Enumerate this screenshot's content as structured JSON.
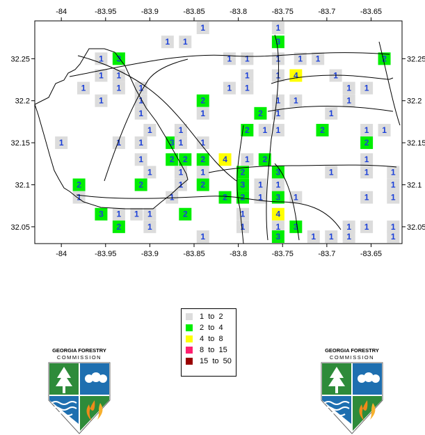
{
  "map": {
    "x_ticks": [
      "-84",
      "-83.95",
      "-83.9",
      "-83.85",
      "-83.8",
      "-83.75",
      "-83.7",
      "-83.65"
    ],
    "y_ticks": [
      "32.25",
      "32.2",
      "32.15",
      "32.1",
      "32.05"
    ],
    "lon_range": [
      -84.03,
      -83.615
    ],
    "lat_range": [
      32.03,
      32.295
    ],
    "cells": [
      {
        "lon": -83.84,
        "lat": 32.29,
        "label": "1",
        "class": "1to2"
      },
      {
        "lon": -83.755,
        "lat": 32.29,
        "label": "1",
        "class": "1to2"
      },
      {
        "lon": -83.88,
        "lat": 32.27,
        "label": "1",
        "class": "1to2"
      },
      {
        "lon": -83.86,
        "lat": 32.27,
        "label": "1",
        "class": "1to2"
      },
      {
        "lon": -83.755,
        "lat": 32.27,
        "label": "3",
        "class": "2to4"
      },
      {
        "lon": -83.955,
        "lat": 32.25,
        "label": "1",
        "class": "1to2"
      },
      {
        "lon": -83.935,
        "lat": 32.25,
        "label": "3",
        "class": "2to4"
      },
      {
        "lon": -83.81,
        "lat": 32.25,
        "label": "1",
        "class": "1to2"
      },
      {
        "lon": -83.79,
        "lat": 32.25,
        "label": "1",
        "class": "1to2"
      },
      {
        "lon": -83.755,
        "lat": 32.25,
        "label": "1",
        "class": "1to2"
      },
      {
        "lon": -83.73,
        "lat": 32.25,
        "label": "1",
        "class": "1to2"
      },
      {
        "lon": -83.71,
        "lat": 32.25,
        "label": "1",
        "class": "1to2"
      },
      {
        "lon": -83.635,
        "lat": 32.25,
        "label": "2",
        "class": "2to4"
      },
      {
        "lon": -83.955,
        "lat": 32.23,
        "label": "1",
        "class": "1to2"
      },
      {
        "lon": -83.935,
        "lat": 32.23,
        "label": "1",
        "class": "1to2"
      },
      {
        "lon": -83.79,
        "lat": 32.23,
        "label": "1",
        "class": "1to2"
      },
      {
        "lon": -83.755,
        "lat": 32.23,
        "label": "1",
        "class": "1to2"
      },
      {
        "lon": -83.735,
        "lat": 32.23,
        "label": "4",
        "class": "4to8"
      },
      {
        "lon": -83.69,
        "lat": 32.23,
        "label": "1",
        "class": "1to2"
      },
      {
        "lon": -83.975,
        "lat": 32.215,
        "label": "1",
        "class": "1to2"
      },
      {
        "lon": -83.935,
        "lat": 32.215,
        "label": "1",
        "class": "1to2"
      },
      {
        "lon": -83.91,
        "lat": 32.215,
        "label": "1",
        "class": "1to2"
      },
      {
        "lon": -83.81,
        "lat": 32.215,
        "label": "1",
        "class": "1to2"
      },
      {
        "lon": -83.79,
        "lat": 32.215,
        "label": "1",
        "class": "1to2"
      },
      {
        "lon": -83.675,
        "lat": 32.215,
        "label": "1",
        "class": "1to2"
      },
      {
        "lon": -83.655,
        "lat": 32.215,
        "label": "1",
        "class": "1to2"
      },
      {
        "lon": -83.955,
        "lat": 32.2,
        "label": "1",
        "class": "1to2"
      },
      {
        "lon": -83.91,
        "lat": 32.2,
        "label": "1",
        "class": "1to2"
      },
      {
        "lon": -83.84,
        "lat": 32.2,
        "label": "2",
        "class": "2to4"
      },
      {
        "lon": -83.755,
        "lat": 32.2,
        "label": "1",
        "class": "1to2"
      },
      {
        "lon": -83.735,
        "lat": 32.2,
        "label": "1",
        "class": "1to2"
      },
      {
        "lon": -83.675,
        "lat": 32.2,
        "label": "1",
        "class": "1to2"
      },
      {
        "lon": -83.91,
        "lat": 32.185,
        "label": "1",
        "class": "1to2"
      },
      {
        "lon": -83.84,
        "lat": 32.185,
        "label": "1",
        "class": "1to2"
      },
      {
        "lon": -83.775,
        "lat": 32.185,
        "label": "2",
        "class": "2to4"
      },
      {
        "lon": -83.755,
        "lat": 32.185,
        "label": "1",
        "class": "1to2"
      },
      {
        "lon": -83.695,
        "lat": 32.185,
        "label": "1",
        "class": "1to2"
      },
      {
        "lon": -83.9,
        "lat": 32.165,
        "label": "1",
        "class": "1to2"
      },
      {
        "lon": -83.865,
        "lat": 32.165,
        "label": "1",
        "class": "1to2"
      },
      {
        "lon": -83.79,
        "lat": 32.165,
        "label": "2",
        "class": "2to4"
      },
      {
        "lon": -83.77,
        "lat": 32.165,
        "label": "1",
        "class": "1to2"
      },
      {
        "lon": -83.755,
        "lat": 32.165,
        "label": "1",
        "class": "1to2"
      },
      {
        "lon": -83.705,
        "lat": 32.165,
        "label": "2",
        "class": "2to4"
      },
      {
        "lon": -83.655,
        "lat": 32.165,
        "label": "1",
        "class": "1to2"
      },
      {
        "lon": -83.635,
        "lat": 32.165,
        "label": "1",
        "class": "1to2"
      },
      {
        "lon": -84.0,
        "lat": 32.15,
        "label": "1",
        "class": "1to2"
      },
      {
        "lon": -83.935,
        "lat": 32.15,
        "label": "1",
        "class": "1to2"
      },
      {
        "lon": -83.91,
        "lat": 32.15,
        "label": "1",
        "class": "1to2"
      },
      {
        "lon": -83.875,
        "lat": 32.15,
        "label": "3",
        "class": "2to4"
      },
      {
        "lon": -83.865,
        "lat": 32.15,
        "label": "1",
        "class": "1to2"
      },
      {
        "lon": -83.84,
        "lat": 32.15,
        "label": "1",
        "class": "1to2"
      },
      {
        "lon": -83.655,
        "lat": 32.15,
        "label": "2",
        "class": "2to4"
      },
      {
        "lon": -83.91,
        "lat": 32.13,
        "label": "1",
        "class": "1to2"
      },
      {
        "lon": -83.875,
        "lat": 32.13,
        "label": "2",
        "class": "2to4"
      },
      {
        "lon": -83.86,
        "lat": 32.13,
        "label": "2",
        "class": "2to4"
      },
      {
        "lon": -83.84,
        "lat": 32.13,
        "label": "2",
        "class": "2to4"
      },
      {
        "lon": -83.815,
        "lat": 32.13,
        "label": "4",
        "class": "4to8"
      },
      {
        "lon": -83.79,
        "lat": 32.13,
        "label": "1",
        "class": "1to2"
      },
      {
        "lon": -83.77,
        "lat": 32.13,
        "label": "2",
        "class": "2to4"
      },
      {
        "lon": -83.655,
        "lat": 32.13,
        "label": "1",
        "class": "1to2"
      },
      {
        "lon": -83.9,
        "lat": 32.115,
        "label": "1",
        "class": "1to2"
      },
      {
        "lon": -83.865,
        "lat": 32.115,
        "label": "1",
        "class": "1to2"
      },
      {
        "lon": -83.84,
        "lat": 32.115,
        "label": "1",
        "class": "1to2"
      },
      {
        "lon": -83.795,
        "lat": 32.115,
        "label": "2",
        "class": "2to4"
      },
      {
        "lon": -83.755,
        "lat": 32.115,
        "label": "3",
        "class": "2to4"
      },
      {
        "lon": -83.695,
        "lat": 32.115,
        "label": "1",
        "class": "1to2"
      },
      {
        "lon": -83.655,
        "lat": 32.115,
        "label": "1",
        "class": "1to2"
      },
      {
        "lon": -83.625,
        "lat": 32.115,
        "label": "1",
        "class": "1to2"
      },
      {
        "lon": -83.98,
        "lat": 32.1,
        "label": "2",
        "class": "2to4"
      },
      {
        "lon": -83.91,
        "lat": 32.1,
        "label": "2",
        "class": "2to4"
      },
      {
        "lon": -83.865,
        "lat": 32.1,
        "label": "1",
        "class": "1to2"
      },
      {
        "lon": -83.84,
        "lat": 32.1,
        "label": "2",
        "class": "2to4"
      },
      {
        "lon": -83.795,
        "lat": 32.1,
        "label": "3",
        "class": "2to4"
      },
      {
        "lon": -83.775,
        "lat": 32.1,
        "label": "1",
        "class": "1to2"
      },
      {
        "lon": -83.755,
        "lat": 32.1,
        "label": "1",
        "class": "1to2"
      },
      {
        "lon": -83.625,
        "lat": 32.1,
        "label": "1",
        "class": "1to2"
      },
      {
        "lon": -83.98,
        "lat": 32.085,
        "label": "1",
        "class": "1to2"
      },
      {
        "lon": -83.875,
        "lat": 32.085,
        "label": "1",
        "class": "1to2"
      },
      {
        "lon": -83.815,
        "lat": 32.085,
        "label": "2",
        "class": "2to4"
      },
      {
        "lon": -83.795,
        "lat": 32.085,
        "label": "2",
        "class": "2to4"
      },
      {
        "lon": -83.775,
        "lat": 32.085,
        "label": "1",
        "class": "1to2"
      },
      {
        "lon": -83.755,
        "lat": 32.085,
        "label": "3",
        "class": "2to4"
      },
      {
        "lon": -83.735,
        "lat": 32.085,
        "label": "1",
        "class": "1to2"
      },
      {
        "lon": -83.655,
        "lat": 32.085,
        "label": "1",
        "class": "1to2"
      },
      {
        "lon": -83.625,
        "lat": 32.085,
        "label": "1",
        "class": "1to2"
      },
      {
        "lon": -83.955,
        "lat": 32.065,
        "label": "3",
        "class": "2to4"
      },
      {
        "lon": -83.935,
        "lat": 32.065,
        "label": "1",
        "class": "1to2"
      },
      {
        "lon": -83.915,
        "lat": 32.065,
        "label": "1",
        "class": "1to2"
      },
      {
        "lon": -83.9,
        "lat": 32.065,
        "label": "1",
        "class": "1to2"
      },
      {
        "lon": -83.86,
        "lat": 32.065,
        "label": "2",
        "class": "2to4"
      },
      {
        "lon": -83.795,
        "lat": 32.065,
        "label": "1",
        "class": "1to2"
      },
      {
        "lon": -83.755,
        "lat": 32.065,
        "label": "4",
        "class": "4to8"
      },
      {
        "lon": -83.935,
        "lat": 32.05,
        "label": "2",
        "class": "2to4"
      },
      {
        "lon": -83.9,
        "lat": 32.05,
        "label": "1",
        "class": "1to2"
      },
      {
        "lon": -83.795,
        "lat": 32.05,
        "label": "1",
        "class": "1to2"
      },
      {
        "lon": -83.755,
        "lat": 32.05,
        "label": "1",
        "class": "1to2"
      },
      {
        "lon": -83.735,
        "lat": 32.05,
        "label": "3",
        "class": "2to4"
      },
      {
        "lon": -83.675,
        "lat": 32.05,
        "label": "1",
        "class": "1to2"
      },
      {
        "lon": -83.655,
        "lat": 32.05,
        "label": "1",
        "class": "1to2"
      },
      {
        "lon": -83.625,
        "lat": 32.05,
        "label": "1",
        "class": "1to2"
      },
      {
        "lon": -83.84,
        "lat": 32.035,
        "label": "1",
        "class": "1to2"
      },
      {
        "lon": -83.755,
        "lat": 32.035,
        "label": "3",
        "class": "2to4"
      },
      {
        "lon": -83.715,
        "lat": 32.035,
        "label": "1",
        "class": "1to2"
      },
      {
        "lon": -83.695,
        "lat": 32.035,
        "label": "1",
        "class": "1to2"
      },
      {
        "lon": -83.675,
        "lat": 32.035,
        "label": "1",
        "class": "1to2"
      },
      {
        "lon": -83.625,
        "lat": 32.035,
        "label": "1",
        "class": "1to2"
      }
    ]
  },
  "legend": {
    "items": [
      {
        "label": "1  to  2",
        "color": "#dcdcdc",
        "class": "1to2"
      },
      {
        "label": "2  to  4",
        "color": "#00ee00",
        "class": "2to4"
      },
      {
        "label": "4  to  8",
        "color": "#ffff00",
        "class": "4to8"
      },
      {
        "label": "8  to  15",
        "color": "#ff1f6f",
        "class": "8to15"
      },
      {
        "label": "15  to  50",
        "color": "#990000",
        "class": "15to50"
      }
    ]
  },
  "logos": {
    "line1": "GEORGIA FORESTRY",
    "line2": "COMMISSION"
  }
}
